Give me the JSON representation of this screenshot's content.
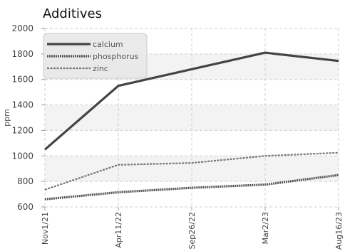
{
  "chart_data": {
    "type": "line",
    "title": "Additives",
    "ylabel": "ppm",
    "xlabel": "",
    "categories": [
      "Nov1/21",
      "Apr11/22",
      "Sep26/22",
      "Mar2/23",
      "Aug16/23"
    ],
    "ylim": [
      600,
      2000
    ],
    "yticks": [
      600,
      800,
      1000,
      1200,
      1400,
      1600,
      1800,
      2000
    ],
    "grid": true,
    "legend_position": "top-left",
    "series": [
      {
        "name": "calcium",
        "values": [
          1050,
          1550,
          1680,
          1810,
          1745
        ],
        "color": "#444444",
        "style": "solid"
      },
      {
        "name": "phosphorus",
        "values": [
          660,
          715,
          750,
          775,
          850
        ],
        "color": "#555555",
        "style": "dense-dash"
      },
      {
        "name": "zinc",
        "values": [
          735,
          930,
          945,
          1000,
          1025
        ],
        "color": "#777777",
        "style": "dash"
      }
    ]
  }
}
